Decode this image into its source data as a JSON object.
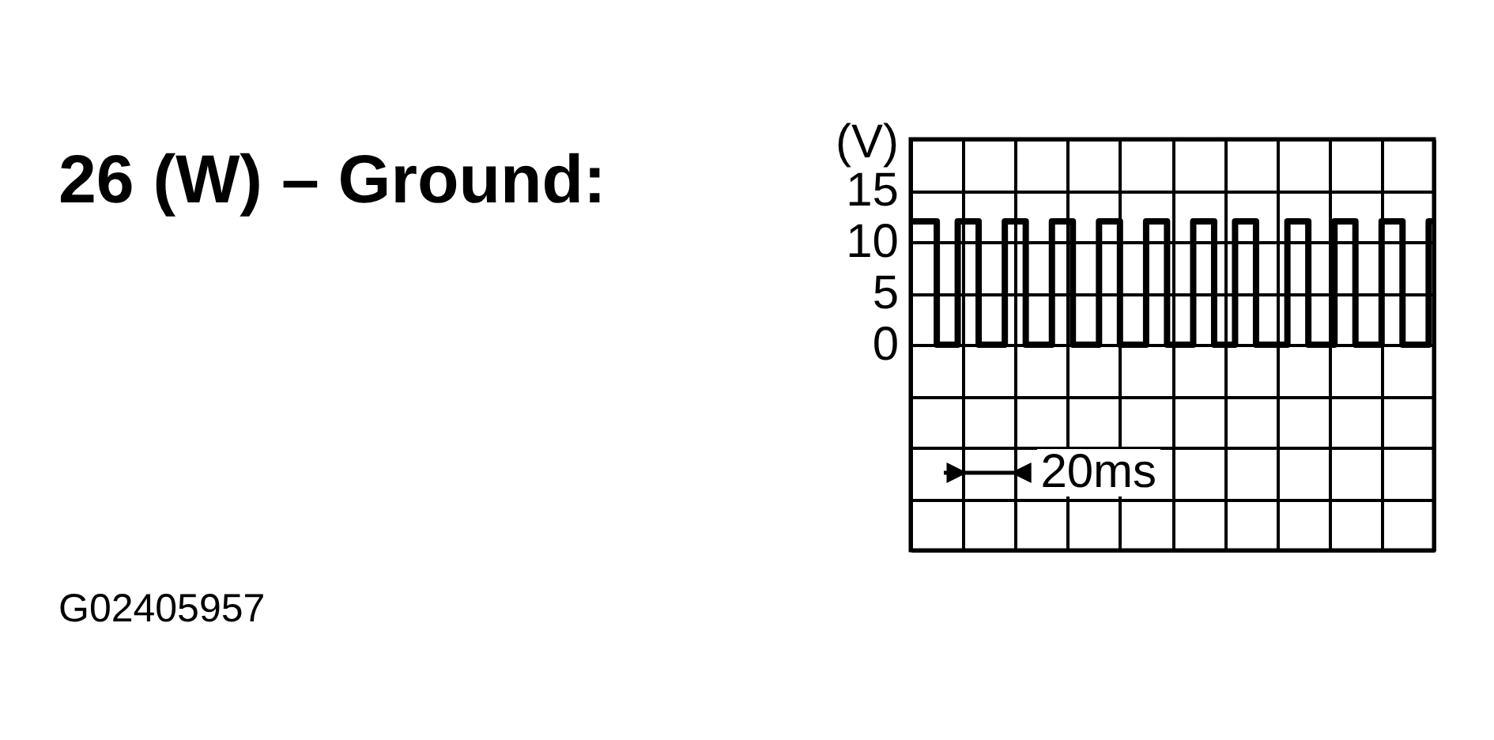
{
  "chart_data": {
    "type": "step",
    "title": "26 (W) – Ground:",
    "ylabel": "(V)",
    "categories": [
      null,
      null,
      null,
      null,
      null,
      null,
      null,
      null,
      null,
      null,
      null,
      null,
      null,
      null,
      null,
      null,
      null,
      null,
      null,
      null,
      null,
      null,
      null,
      null,
      null,
      null,
      null,
      null,
      null,
      null,
      null,
      null,
      null,
      null,
      null,
      null,
      null,
      null,
      null,
      null,
      null,
      null,
      null,
      null,
      null,
      null,
      null,
      null,
      null,
      null,
      null,
      null,
      null,
      null,
      null,
      null,
      null,
      null,
      null,
      null,
      null,
      null,
      null,
      null,
      null,
      null,
      null,
      null,
      null,
      null,
      null,
      null,
      null,
      null,
      null,
      null,
      null,
      null,
      null,
      null,
      null,
      null,
      null,
      null,
      null,
      null,
      null,
      null,
      null,
      null,
      null,
      null,
      null,
      null,
      null,
      null,
      null,
      null,
      null,
      null,
      null
    ],
    "values": [
      12,
      12,
      12,
      12,
      12,
      0,
      0,
      0,
      0,
      12,
      12,
      12,
      12,
      0,
      0,
      0,
      0,
      0,
      12,
      12,
      12,
      12,
      0,
      0,
      0,
      0,
      0,
      12,
      12,
      12,
      12,
      0,
      0,
      0,
      0,
      0,
      12,
      12,
      12,
      12,
      0,
      0,
      0,
      0,
      0,
      12,
      12,
      12,
      12,
      0,
      0,
      0,
      0,
      0,
      12,
      12,
      12,
      12,
      0,
      0,
      0,
      0,
      12,
      12,
      12,
      12,
      0,
      0,
      0,
      0,
      0,
      0,
      12,
      12,
      12,
      12,
      0,
      0,
      0,
      0,
      0,
      12,
      12,
      12,
      12,
      0,
      0,
      0,
      0,
      0,
      12,
      12,
      12,
      12,
      0,
      0,
      0,
      0,
      0,
      12,
      12
    ],
    "color": "#000000",
    "ylim": [
      -20,
      20
    ],
    "yticks": [
      {
        "value": -20,
        "label": null
      },
      {
        "value": -15,
        "label": null
      },
      {
        "value": -10,
        "label": null
      },
      {
        "value": -5,
        "label": null
      },
      0,
      5,
      10,
      15,
      {
        "value": 20,
        "label": null
      }
    ],
    "grid": true,
    "tick_labels": "y",
    "annotations": [
      "20ms",
      "G02405957"
    ]
  }
}
